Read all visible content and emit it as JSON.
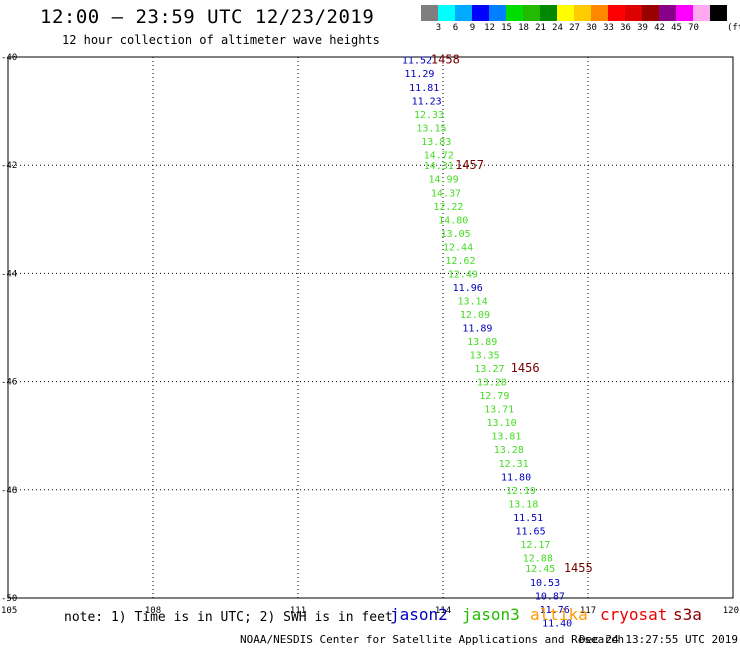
{
  "header": {
    "title": "12:00 – 23:59 UTC 12/23/2019",
    "subtitle": "12 hour collection of altimeter wave heights"
  },
  "scale": {
    "colors": [
      "#7f7f7f",
      "#00ffff",
      "#00aaff",
      "#0000ff",
      "#0080ff",
      "#00dd00",
      "#22bb00",
      "#008800",
      "#ffff00",
      "#ffcc00",
      "#ff8800",
      "#ff0000",
      "#dd0000",
      "#990000",
      "#880088",
      "#ff00ff",
      "#ffaaee",
      "#000000"
    ],
    "labels": [
      "3",
      "6",
      "9",
      "12",
      "15",
      "18",
      "21",
      "24",
      "27",
      "30",
      "33",
      "36",
      "39",
      "42",
      "45",
      "70"
    ],
    "unit": "(ft)"
  },
  "axes": {
    "x_ticks": [
      "105",
      "108",
      "111",
      "114",
      "117",
      "120"
    ],
    "y_ticks": [
      "-40",
      "-42",
      "-44",
      "-46",
      "-48",
      "-50"
    ]
  },
  "colors": {
    "jason2": "#0000bb",
    "jason3": "#44dd22",
    "altika": "#ff9900",
    "cryosat": "#ee0000",
    "s3a": "#880000"
  },
  "readings": [
    {
      "lat": -40.05,
      "lon": 113.15,
      "v": "11.52",
      "sat": "jason2"
    },
    {
      "lat": -40.3,
      "lon": 113.2,
      "v": "11.29",
      "sat": "jason2"
    },
    {
      "lat": -40.55,
      "lon": 113.3,
      "v": "11.81",
      "sat": "jason2"
    },
    {
      "lat": -40.8,
      "lon": 113.35,
      "v": "11.23",
      "sat": "jason2"
    },
    {
      "lat": -41.05,
      "lon": 113.4,
      "v": "12.33",
      "sat": "jason3"
    },
    {
      "lat": -41.3,
      "lon": 113.45,
      "v": "13.15",
      "sat": "jason3"
    },
    {
      "lat": -41.55,
      "lon": 113.55,
      "v": "13.83",
      "sat": "jason3"
    },
    {
      "lat": -41.8,
      "lon": 113.6,
      "v": "14.72",
      "sat": "jason3"
    },
    {
      "lat": -42.0,
      "lon": 113.6,
      "v": "14.31",
      "sat": "jason3"
    },
    {
      "lat": -42.25,
      "lon": 113.7,
      "v": "14.99",
      "sat": "jason3"
    },
    {
      "lat": -42.5,
      "lon": 113.75,
      "v": "14.37",
      "sat": "jason3"
    },
    {
      "lat": -42.75,
      "lon": 113.8,
      "v": "12.22",
      "sat": "jason3"
    },
    {
      "lat": -43.0,
      "lon": 113.9,
      "v": "14.80",
      "sat": "jason3"
    },
    {
      "lat": -43.25,
      "lon": 113.95,
      "v": "13.05",
      "sat": "jason3"
    },
    {
      "lat": -43.5,
      "lon": 114.0,
      "v": "12.44",
      "sat": "jason3"
    },
    {
      "lat": -43.75,
      "lon": 114.05,
      "v": "12.62",
      "sat": "jason3"
    },
    {
      "lat": -44.0,
      "lon": 114.1,
      "v": "12.49",
      "sat": "jason3"
    },
    {
      "lat": -44.25,
      "lon": 114.2,
      "v": "11.96",
      "sat": "jason2"
    },
    {
      "lat": -44.5,
      "lon": 114.3,
      "v": "13.14",
      "sat": "jason3"
    },
    {
      "lat": -44.75,
      "lon": 114.35,
      "v": "12.09",
      "sat": "jason3"
    },
    {
      "lat": -45.0,
      "lon": 114.4,
      "v": "11.89",
      "sat": "jason2"
    },
    {
      "lat": -45.25,
      "lon": 114.5,
      "v": "13.89",
      "sat": "jason3"
    },
    {
      "lat": -45.5,
      "lon": 114.55,
      "v": "13.35",
      "sat": "jason3"
    },
    {
      "lat": -45.75,
      "lon": 114.65,
      "v": "13.27",
      "sat": "jason3"
    },
    {
      "lat": -46.0,
      "lon": 114.7,
      "v": "13.28",
      "sat": "jason3"
    },
    {
      "lat": -46.25,
      "lon": 114.75,
      "v": "12.79",
      "sat": "jason3"
    },
    {
      "lat": -46.5,
      "lon": 114.85,
      "v": "13.71",
      "sat": "jason3"
    },
    {
      "lat": -46.75,
      "lon": 114.9,
      "v": "13.10",
      "sat": "jason3"
    },
    {
      "lat": -47.0,
      "lon": 115.0,
      "v": "13.81",
      "sat": "jason3"
    },
    {
      "lat": -47.25,
      "lon": 115.05,
      "v": "13.28",
      "sat": "jason3"
    },
    {
      "lat": -47.5,
      "lon": 115.15,
      "v": "12.31",
      "sat": "jason3"
    },
    {
      "lat": -47.75,
      "lon": 115.2,
      "v": "11.80",
      "sat": "jason2"
    },
    {
      "lat": -48.0,
      "lon": 115.3,
      "v": "12.19",
      "sat": "jason3"
    },
    {
      "lat": -48.25,
      "lon": 115.35,
      "v": "13.18",
      "sat": "jason3"
    },
    {
      "lat": -48.5,
      "lon": 115.45,
      "v": "11.51",
      "sat": "jason2"
    },
    {
      "lat": -48.75,
      "lon": 115.5,
      "v": "11.65",
      "sat": "jason2"
    },
    {
      "lat": -49.0,
      "lon": 115.6,
      "v": "12.17",
      "sat": "jason3"
    },
    {
      "lat": -49.25,
      "lon": 115.65,
      "v": "12.88",
      "sat": "jason3"
    },
    {
      "lat": -49.45,
      "lon": 115.7,
      "v": "12.45",
      "sat": "jason3"
    },
    {
      "lat": -49.7,
      "lon": 115.8,
      "v": "10.53",
      "sat": "jason2"
    },
    {
      "lat": -49.95,
      "lon": 115.9,
      "v": "10.87",
      "sat": "jason2"
    },
    {
      "lat": -50.2,
      "lon": 116.0,
      "v": "11.76",
      "sat": "jason2"
    },
    {
      "lat": -50.45,
      "lon": 116.05,
      "v": "11.40",
      "sat": "jason2"
    }
  ],
  "time_marks": [
    {
      "lat": -40.05,
      "lon": 113.75,
      "t": "1458"
    },
    {
      "lat": -42.0,
      "lon": 114.25,
      "t": "1457"
    },
    {
      "lat": -45.75,
      "lon": 115.4,
      "t": "1456"
    },
    {
      "lat": -49.45,
      "lon": 116.5,
      "t": "1455"
    }
  ],
  "note": "note: 1) Time is in UTC; 2) SWH is in feet",
  "missions": {
    "jason2": "jason2",
    "jason3": "jason3",
    "altika": "altika",
    "cryosat": "cryosat",
    "s3a": "s3a"
  },
  "footer": {
    "left": "NOAA/NESDIS Center for Satellite Applications and Research",
    "right": "Dec 24 13:27:55 UTC 2019"
  }
}
